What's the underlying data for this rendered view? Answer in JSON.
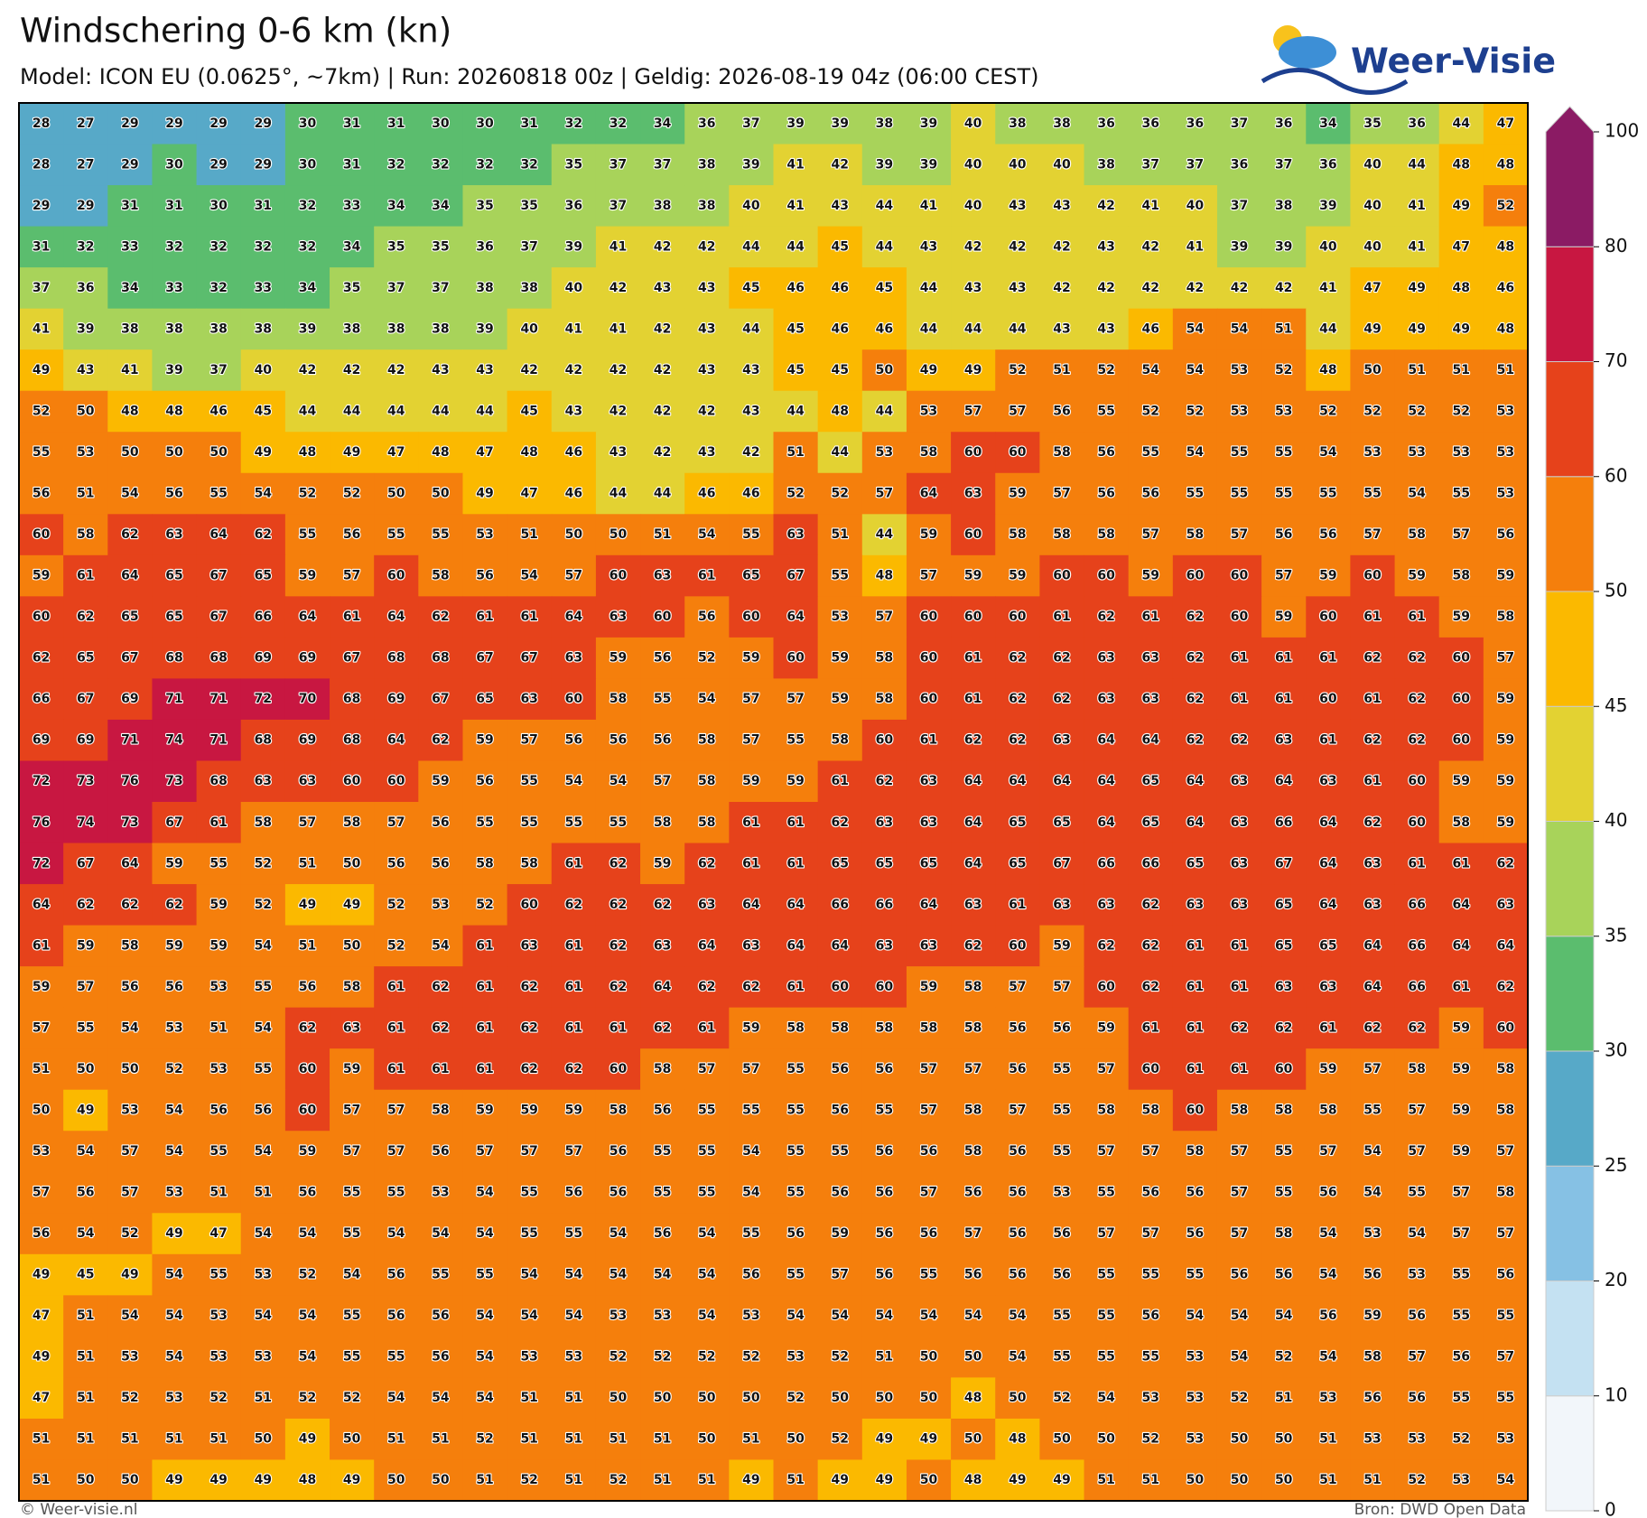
{
  "header": {
    "title": "Windschering 0-6 km (kn)",
    "subtitle": "Model: ICON EU (0.0625°, ~7km)  |  Run: 20260818 00z  |  Geldig: 2026-08-19 04z (06:00 CEST)",
    "logo": "Weer-Visie"
  },
  "footer": {
    "left": "© Weer-visie.nl",
    "right": "Bron: DWD Open Data"
  },
  "colorbar": {
    "levels": [
      0,
      10,
      20,
      25,
      30,
      35,
      40,
      45,
      50,
      60,
      70,
      80,
      100
    ],
    "colors": [
      "#f2f6fa",
      "#c4e1f2",
      "#86c1e4",
      "#57a9c8",
      "#5bbd6e",
      "#a8d35a",
      "#e3d232",
      "#fbb900",
      "#f57f0c",
      "#e6421b",
      "#c81741",
      "#8b1b64"
    ]
  },
  "grid": {
    "rows": [
      [
        28,
        27,
        29,
        29,
        29,
        29,
        30,
        31,
        31,
        30,
        30,
        31,
        32,
        32,
        34,
        36,
        37,
        39,
        39,
        38,
        39,
        40,
        38,
        38,
        36,
        36,
        36,
        37,
        36,
        34,
        35,
        36,
        44,
        47
      ],
      [
        28,
        27,
        29,
        30,
        29,
        29,
        30,
        31,
        32,
        32,
        32,
        32,
        35,
        37,
        37,
        38,
        39,
        41,
        42,
        39,
        39,
        40,
        40,
        40,
        38,
        37,
        37,
        36,
        37,
        36,
        40,
        44,
        48,
        48
      ],
      [
        29,
        29,
        31,
        31,
        30,
        31,
        32,
        33,
        34,
        34,
        35,
        35,
        36,
        37,
        38,
        38,
        40,
        41,
        43,
        44,
        41,
        40,
        43,
        43,
        42,
        41,
        40,
        37,
        38,
        39,
        40,
        41,
        49,
        52
      ],
      [
        31,
        32,
        33,
        32,
        32,
        32,
        32,
        34,
        35,
        35,
        36,
        37,
        39,
        41,
        42,
        42,
        44,
        44,
        45,
        44,
        43,
        42,
        42,
        42,
        43,
        42,
        41,
        39,
        39,
        40,
        40,
        41,
        47,
        48
      ],
      [
        37,
        36,
        34,
        33,
        32,
        33,
        34,
        35,
        37,
        37,
        38,
        38,
        40,
        42,
        43,
        43,
        45,
        46,
        46,
        45,
        44,
        43,
        43,
        42,
        42,
        42,
        42,
        42,
        42,
        41,
        47,
        49,
        48,
        46
      ],
      [
        41,
        39,
        38,
        38,
        38,
        38,
        39,
        38,
        38,
        38,
        39,
        40,
        41,
        41,
        42,
        43,
        44,
        45,
        46,
        46,
        44,
        44,
        44,
        43,
        43,
        46,
        54,
        54,
        51,
        44,
        49,
        49,
        49,
        48
      ],
      [
        49,
        43,
        41,
        39,
        37,
        40,
        42,
        42,
        42,
        43,
        43,
        42,
        42,
        42,
        42,
        43,
        43,
        45,
        45,
        50,
        49,
        49,
        52,
        51,
        52,
        54,
        54,
        53,
        52,
        48,
        50,
        51,
        51,
        51
      ],
      [
        52,
        50,
        48,
        48,
        46,
        45,
        44,
        44,
        44,
        44,
        44,
        45,
        43,
        42,
        42,
        42,
        43,
        44,
        48,
        44,
        53,
        57,
        57,
        56,
        55,
        52,
        52,
        53,
        53,
        52,
        52,
        52,
        52,
        53
      ],
      [
        55,
        53,
        50,
        50,
        50,
        49,
        48,
        49,
        47,
        48,
        47,
        48,
        46,
        43,
        42,
        43,
        42,
        51,
        44,
        53,
        58,
        60,
        60,
        58,
        56,
        55,
        54,
        55,
        55,
        54,
        53,
        53,
        53,
        53
      ],
      [
        56,
        51,
        54,
        56,
        55,
        54,
        52,
        52,
        50,
        50,
        49,
        47,
        46,
        44,
        44,
        46,
        46,
        52,
        52,
        57,
        64,
        63,
        59,
        57,
        56,
        56,
        55,
        55,
        55,
        55,
        55,
        54,
        55,
        53
      ],
      [
        60,
        58,
        62,
        63,
        64,
        62,
        55,
        56,
        55,
        55,
        53,
        51,
        50,
        50,
        51,
        54,
        55,
        63,
        51,
        44,
        59,
        60,
        58,
        58,
        58,
        57,
        58,
        57,
        56,
        56,
        57,
        58,
        57,
        56
      ],
      [
        59,
        61,
        64,
        65,
        67,
        65,
        59,
        57,
        60,
        58,
        56,
        54,
        57,
        60,
        63,
        61,
        65,
        67,
        55,
        48,
        57,
        59,
        59,
        60,
        60,
        59,
        60,
        60,
        57,
        59,
        60,
        59,
        58,
        59
      ],
      [
        60,
        62,
        65,
        65,
        67,
        66,
        64,
        61,
        64,
        62,
        61,
        61,
        64,
        63,
        60,
        56,
        60,
        64,
        53,
        57,
        60,
        60,
        60,
        61,
        62,
        61,
        62,
        60,
        59,
        60,
        61,
        61,
        59,
        58
      ],
      [
        62,
        65,
        67,
        68,
        68,
        69,
        69,
        67,
        68,
        68,
        67,
        67,
        63,
        59,
        56,
        52,
        59,
        60,
        59,
        58,
        60,
        61,
        62,
        62,
        63,
        63,
        62,
        61,
        61,
        61,
        62,
        62,
        60,
        57
      ],
      [
        66,
        67,
        69,
        71,
        71,
        72,
        70,
        68,
        69,
        67,
        65,
        63,
        60,
        58,
        55,
        54,
        57,
        57,
        59,
        58,
        60,
        61,
        62,
        62,
        63,
        63,
        62,
        61,
        61,
        60,
        61,
        62,
        60,
        59
      ],
      [
        69,
        69,
        71,
        74,
        71,
        68,
        69,
        68,
        64,
        62,
        59,
        57,
        56,
        56,
        56,
        58,
        57,
        55,
        58,
        60,
        61,
        62,
        62,
        63,
        64,
        64,
        62,
        62,
        63,
        61,
        62,
        62,
        60,
        59
      ],
      [
        72,
        73,
        76,
        73,
        68,
        63,
        63,
        60,
        60,
        59,
        56,
        55,
        54,
        54,
        57,
        58,
        59,
        59,
        61,
        62,
        63,
        64,
        64,
        64,
        64,
        65,
        64,
        63,
        64,
        63,
        61,
        60,
        59,
        59
      ],
      [
        76,
        74,
        73,
        67,
        61,
        58,
        57,
        58,
        57,
        56,
        55,
        55,
        55,
        55,
        58,
        58,
        61,
        61,
        62,
        63,
        63,
        64,
        65,
        65,
        64,
        65,
        64,
        63,
        66,
        64,
        62,
        60,
        58,
        59
      ],
      [
        72,
        67,
        64,
        59,
        55,
        52,
        51,
        50,
        56,
        56,
        58,
        58,
        61,
        62,
        59,
        62,
        61,
        61,
        65,
        65,
        65,
        64,
        65,
        67,
        66,
        66,
        65,
        63,
        67,
        64,
        63,
        61,
        61,
        62
      ],
      [
        64,
        62,
        62,
        62,
        59,
        52,
        49,
        49,
        52,
        53,
        52,
        60,
        62,
        62,
        62,
        63,
        64,
        64,
        66,
        66,
        64,
        63,
        61,
        63,
        63,
        62,
        63,
        63,
        65,
        64,
        63,
        66,
        64,
        63
      ],
      [
        61,
        59,
        58,
        59,
        59,
        54,
        51,
        50,
        52,
        54,
        61,
        63,
        61,
        62,
        63,
        64,
        63,
        64,
        64,
        63,
        63,
        62,
        60,
        59,
        62,
        62,
        61,
        61,
        65,
        65,
        64,
        66,
        64,
        64
      ],
      [
        59,
        57,
        56,
        56,
        53,
        55,
        56,
        58,
        61,
        62,
        61,
        62,
        61,
        62,
        64,
        62,
        62,
        61,
        60,
        60,
        59,
        58,
        57,
        57,
        60,
        62,
        61,
        61,
        63,
        63,
        64,
        66,
        61,
        62
      ],
      [
        57,
        55,
        54,
        53,
        51,
        54,
        62,
        63,
        61,
        62,
        61,
        62,
        61,
        61,
        62,
        61,
        59,
        58,
        58,
        58,
        58,
        58,
        56,
        56,
        59,
        61,
        61,
        62,
        62,
        61,
        62,
        62,
        59,
        60
      ],
      [
        51,
        50,
        50,
        52,
        53,
        55,
        60,
        59,
        61,
        61,
        61,
        62,
        62,
        60,
        58,
        57,
        57,
        55,
        56,
        56,
        57,
        57,
        56,
        55,
        57,
        60,
        61,
        61,
        60,
        59,
        57,
        58,
        59,
        58
      ],
      [
        50,
        49,
        53,
        54,
        56,
        56,
        60,
        57,
        57,
        58,
        59,
        59,
        59,
        58,
        56,
        55,
        55,
        55,
        56,
        55,
        57,
        58,
        57,
        55,
        58,
        58,
        60,
        58,
        58,
        58,
        55,
        57,
        59,
        58
      ],
      [
        53,
        54,
        57,
        54,
        55,
        54,
        59,
        57,
        57,
        56,
        57,
        57,
        57,
        56,
        55,
        55,
        54,
        55,
        55,
        56,
        56,
        58,
        56,
        55,
        57,
        57,
        58,
        57,
        55,
        57,
        54,
        57,
        59,
        57
      ],
      [
        57,
        56,
        57,
        53,
        51,
        51,
        56,
        55,
        55,
        53,
        54,
        55,
        56,
        56,
        55,
        55,
        54,
        55,
        56,
        56,
        57,
        56,
        56,
        53,
        55,
        56,
        56,
        57,
        55,
        56,
        54,
        55,
        57,
        58
      ],
      [
        56,
        54,
        52,
        49,
        47,
        54,
        54,
        55,
        54,
        54,
        54,
        55,
        55,
        54,
        56,
        54,
        55,
        56,
        59,
        56,
        56,
        57,
        56,
        56,
        57,
        57,
        56,
        57,
        58,
        54,
        53,
        54,
        57,
        57
      ],
      [
        49,
        45,
        49,
        54,
        55,
        53,
        52,
        54,
        56,
        55,
        55,
        54,
        54,
        54,
        54,
        54,
        56,
        55,
        57,
        56,
        55,
        56,
        56,
        56,
        55,
        55,
        55,
        56,
        56,
        54,
        56,
        53,
        55,
        56
      ],
      [
        47,
        51,
        54,
        54,
        53,
        54,
        54,
        55,
        56,
        56,
        54,
        54,
        54,
        53,
        53,
        54,
        53,
        54,
        54,
        54,
        54,
        54,
        54,
        55,
        55,
        56,
        54,
        54,
        54,
        56,
        59,
        56,
        55,
        55
      ],
      [
        49,
        51,
        53,
        54,
        53,
        53,
        54,
        55,
        55,
        56,
        54,
        53,
        53,
        52,
        52,
        52,
        52,
        53,
        52,
        51,
        50,
        50,
        54,
        55,
        55,
        55,
        53,
        54,
        52,
        54,
        58,
        57,
        56,
        57
      ],
      [
        47,
        51,
        52,
        53,
        52,
        51,
        52,
        52,
        54,
        54,
        54,
        51,
        51,
        50,
        50,
        50,
        50,
        52,
        50,
        50,
        50,
        48,
        50,
        52,
        54,
        53,
        53,
        52,
        51,
        53,
        56,
        56,
        55,
        55
      ],
      [
        51,
        51,
        51,
        51,
        51,
        50,
        49,
        50,
        51,
        51,
        52,
        51,
        51,
        51,
        51,
        50,
        51,
        50,
        52,
        49,
        49,
        50,
        48,
        50,
        50,
        52,
        53,
        50,
        50,
        51,
        53,
        53,
        52,
        53
      ],
      [
        51,
        50,
        50,
        49,
        49,
        49,
        48,
        49,
        50,
        50,
        51,
        52,
        51,
        52,
        51,
        51,
        49,
        51,
        49,
        49,
        50,
        48,
        49,
        49,
        51,
        51,
        50,
        50,
        50,
        51,
        51,
        52,
        53,
        54
      ]
    ]
  }
}
